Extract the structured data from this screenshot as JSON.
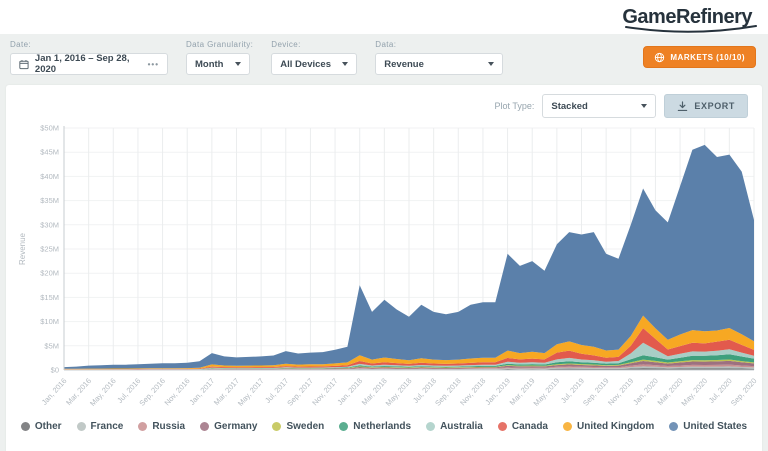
{
  "header": {
    "logo": "GameRefinery"
  },
  "filters": {
    "date": {
      "label": "Date:",
      "value": "Jan 1, 2016  –  Sep 28, 2020",
      "more": "•••"
    },
    "granularity": {
      "label": "Data Granularity:",
      "value": "Month"
    },
    "device": {
      "label": "Device:",
      "value": "All Devices"
    },
    "data": {
      "label": "Data:",
      "value": "Revenue"
    },
    "markets_button": "MARKETS (10/10)"
  },
  "toolbar": {
    "plot_type_label": "Plot Type:",
    "plot_type_value": "Stacked",
    "export_label": "EXPORT"
  },
  "chart_data": {
    "type": "area",
    "stacked": true,
    "title": "",
    "xlabel": "",
    "ylabel": "Revenue",
    "unit": "USD millions",
    "ylim": [
      0,
      50000000
    ],
    "ymax_m": 50,
    "grid": true,
    "legend_position": "bottom",
    "x_tick_every": 2,
    "yticks": [
      "$0",
      "$5M",
      "$10M",
      "$15M",
      "$20M",
      "$25M",
      "$30M",
      "$35M",
      "$40M",
      "$45M",
      "$50M"
    ],
    "categories": [
      "Jan, 2016",
      "Feb, 2016",
      "Mar, 2016",
      "Apr, 2016",
      "May, 2016",
      "Jun, 2016",
      "Jul, 2016",
      "Aug, 2016",
      "Sep, 2016",
      "Oct, 2016",
      "Nov, 2016",
      "Dec, 2016",
      "Jan, 2017",
      "Feb, 2017",
      "Mar, 2017",
      "Apr, 2017",
      "May, 2017",
      "Jun, 2017",
      "Jul, 2017",
      "Aug, 2017",
      "Sep, 2017",
      "Oct, 2017",
      "Nov, 2017",
      "Dec, 2017",
      "Jan, 2018",
      "Feb, 2018",
      "Mar, 2018",
      "Apr, 2018",
      "May, 2018",
      "Jun, 2018",
      "Jul, 2018",
      "Aug, 2018",
      "Sep, 2018",
      "Oct, 2018",
      "Nov, 2018",
      "Dec, 2018",
      "Jan, 2019",
      "Feb, 2019",
      "Mar, 2019",
      "Apr, 2019",
      "May, 2019",
      "Jun, 2019",
      "Jul, 2019",
      "Aug, 2019",
      "Sep, 2019",
      "Oct, 2019",
      "Nov, 2019",
      "Dec, 2019",
      "Jan, 2020",
      "Feb, 2020",
      "Mar, 2020",
      "Apr, 2020",
      "May, 2020",
      "Jun, 2020",
      "Jul, 2020",
      "Aug, 2020",
      "Sep, 2020"
    ],
    "series": [
      {
        "name": "Other",
        "color": "#6d6e71",
        "values": [
          0.01,
          0.01,
          0.01,
          0.01,
          0.01,
          0.01,
          0.01,
          0.01,
          0.01,
          0.01,
          0.01,
          0.01,
          0.06,
          0.05,
          0.05,
          0.05,
          0.05,
          0.05,
          0.07,
          0.06,
          0.06,
          0.06,
          0.07,
          0.08,
          0.15,
          0.11,
          0.13,
          0.11,
          0.1,
          0.12,
          0.11,
          0.1,
          0.11,
          0.12,
          0.13,
          0.13,
          0.2,
          0.17,
          0.18,
          0.17,
          0.25,
          0.28,
          0.25,
          0.23,
          0.2,
          0.21,
          0.32,
          0.4,
          0.35,
          0.28,
          0.32,
          0.36,
          0.35,
          0.36,
          0.38,
          0.32,
          0.27
        ]
      },
      {
        "name": "France",
        "color": "#b6c0bd",
        "values": [
          0.01,
          0.01,
          0.01,
          0.01,
          0.01,
          0.01,
          0.01,
          0.01,
          0.01,
          0.01,
          0.01,
          0.01,
          0.05,
          0.04,
          0.04,
          0.04,
          0.04,
          0.04,
          0.05,
          0.05,
          0.05,
          0.05,
          0.06,
          0.06,
          0.12,
          0.09,
          0.1,
          0.09,
          0.08,
          0.1,
          0.09,
          0.08,
          0.09,
          0.1,
          0.11,
          0.11,
          0.18,
          0.15,
          0.16,
          0.15,
          0.2,
          0.22,
          0.2,
          0.19,
          0.17,
          0.18,
          0.28,
          0.35,
          0.32,
          0.26,
          0.3,
          0.34,
          0.33,
          0.34,
          0.36,
          0.3,
          0.26
        ]
      },
      {
        "name": "Russia",
        "color": "#c98f90",
        "values": [
          0.01,
          0.01,
          0.01,
          0.01,
          0.01,
          0.01,
          0.01,
          0.01,
          0.01,
          0.01,
          0.01,
          0.01,
          0.05,
          0.04,
          0.04,
          0.04,
          0.04,
          0.04,
          0.06,
          0.05,
          0.05,
          0.05,
          0.06,
          0.07,
          0.13,
          0.1,
          0.11,
          0.1,
          0.09,
          0.11,
          0.1,
          0.09,
          0.1,
          0.11,
          0.12,
          0.12,
          0.18,
          0.16,
          0.17,
          0.16,
          0.22,
          0.25,
          0.22,
          0.2,
          0.18,
          0.19,
          0.3,
          0.4,
          0.35,
          0.28,
          0.32,
          0.36,
          0.35,
          0.36,
          0.38,
          0.32,
          0.28
        ]
      },
      {
        "name": "Germany",
        "color": "#9d7080",
        "values": [
          0.02,
          0.02,
          0.02,
          0.02,
          0.02,
          0.02,
          0.02,
          0.03,
          0.03,
          0.03,
          0.03,
          0.04,
          0.1,
          0.08,
          0.08,
          0.08,
          0.08,
          0.09,
          0.11,
          0.1,
          0.1,
          0.1,
          0.11,
          0.13,
          0.22,
          0.16,
          0.19,
          0.17,
          0.15,
          0.18,
          0.16,
          0.15,
          0.16,
          0.17,
          0.18,
          0.18,
          0.3,
          0.26,
          0.28,
          0.26,
          0.35,
          0.4,
          0.36,
          0.34,
          0.3,
          0.32,
          0.5,
          0.7,
          0.6,
          0.5,
          0.6,
          0.7,
          0.7,
          0.72,
          0.75,
          0.65,
          0.55
        ]
      },
      {
        "name": "Sweden",
        "color": "#c0c24e",
        "values": [
          0.01,
          0.01,
          0.01,
          0.01,
          0.01,
          0.01,
          0.01,
          0.01,
          0.01,
          0.01,
          0.01,
          0.01,
          0.05,
          0.04,
          0.04,
          0.04,
          0.04,
          0.05,
          0.06,
          0.05,
          0.05,
          0.05,
          0.06,
          0.07,
          0.12,
          0.09,
          0.11,
          0.1,
          0.09,
          0.1,
          0.09,
          0.09,
          0.09,
          0.1,
          0.11,
          0.11,
          0.15,
          0.13,
          0.14,
          0.13,
          0.18,
          0.2,
          0.18,
          0.17,
          0.15,
          0.16,
          0.22,
          0.3,
          0.26,
          0.22,
          0.25,
          0.28,
          0.27,
          0.28,
          0.3,
          0.25,
          0.2
        ]
      },
      {
        "name": "Netherlands",
        "color": "#3ea07d",
        "values": [
          0.02,
          0.02,
          0.02,
          0.02,
          0.02,
          0.02,
          0.03,
          0.03,
          0.03,
          0.03,
          0.03,
          0.04,
          0.08,
          0.07,
          0.06,
          0.07,
          0.07,
          0.07,
          0.09,
          0.08,
          0.08,
          0.09,
          0.1,
          0.11,
          0.22,
          0.16,
          0.19,
          0.17,
          0.15,
          0.18,
          0.16,
          0.15,
          0.16,
          0.18,
          0.19,
          0.19,
          0.3,
          0.27,
          0.29,
          0.27,
          0.4,
          0.45,
          0.4,
          0.38,
          0.32,
          0.35,
          0.6,
          0.9,
          0.75,
          0.6,
          0.75,
          0.9,
          0.95,
          1.0,
          1.1,
          0.95,
          0.8
        ]
      },
      {
        "name": "Australia",
        "color": "#a8cec6",
        "values": [
          0.03,
          0.03,
          0.03,
          0.03,
          0.04,
          0.04,
          0.04,
          0.04,
          0.04,
          0.04,
          0.05,
          0.06,
          0.1,
          0.09,
          0.08,
          0.08,
          0.09,
          0.09,
          0.12,
          0.1,
          0.11,
          0.11,
          0.12,
          0.15,
          0.3,
          0.22,
          0.26,
          0.23,
          0.2,
          0.24,
          0.21,
          0.2,
          0.21,
          0.23,
          0.25,
          0.25,
          0.4,
          0.35,
          0.38,
          0.35,
          0.6,
          0.7,
          0.55,
          0.5,
          0.4,
          0.45,
          1.2,
          2.6,
          1.6,
          0.7,
          0.8,
          0.9,
          0.85,
          0.9,
          1.0,
          0.8,
          0.6
        ]
      },
      {
        "name": "Canada",
        "color": "#e25a4d",
        "values": [
          0.05,
          0.05,
          0.06,
          0.06,
          0.07,
          0.07,
          0.07,
          0.08,
          0.08,
          0.08,
          0.08,
          0.1,
          0.22,
          0.18,
          0.17,
          0.17,
          0.18,
          0.19,
          0.25,
          0.21,
          0.22,
          0.23,
          0.26,
          0.3,
          0.6,
          0.42,
          0.5,
          0.45,
          0.4,
          0.48,
          0.42,
          0.4,
          0.42,
          0.46,
          0.5,
          0.5,
          0.8,
          0.7,
          0.75,
          0.7,
          1.4,
          1.5,
          1.2,
          1.0,
          0.8,
          0.85,
          1.6,
          3.0,
          2.2,
          1.4,
          1.6,
          1.8,
          1.7,
          1.9,
          2.0,
          1.6,
          1.2
        ]
      },
      {
        "name": "United Kingdom",
        "color": "#f7a823",
        "values": [
          0.1,
          0.1,
          0.12,
          0.12,
          0.13,
          0.13,
          0.14,
          0.15,
          0.15,
          0.15,
          0.16,
          0.2,
          0.45,
          0.35,
          0.32,
          0.33,
          0.35,
          0.38,
          0.5,
          0.42,
          0.45,
          0.45,
          0.52,
          0.6,
          1.2,
          0.8,
          1.0,
          0.85,
          0.75,
          0.9,
          0.8,
          0.78,
          0.8,
          0.9,
          0.95,
          0.95,
          1.5,
          1.3,
          1.4,
          1.3,
          1.7,
          1.9,
          1.8,
          1.8,
          1.5,
          1.5,
          2.0,
          2.6,
          2.2,
          2.0,
          2.4,
          2.6,
          2.5,
          2.3,
          2.4,
          2.2,
          1.8
        ]
      },
      {
        "name": "United States",
        "color": "#5b80aa",
        "values": [
          0.34,
          0.44,
          0.61,
          0.71,
          0.78,
          0.78,
          0.86,
          0.93,
          1.03,
          1.03,
          1.11,
          1.33,
          2.34,
          1.86,
          1.72,
          1.8,
          1.86,
          2.0,
          2.59,
          2.28,
          2.43,
          2.51,
          2.84,
          3.23,
          14.44,
          9.85,
          11.91,
          10.23,
          8.99,
          11.09,
          9.86,
          9.46,
          9.86,
          11.13,
          11.46,
          11.46,
          19.99,
          18.01,
          18.75,
          17.01,
          20.7,
          22.6,
          22.84,
          23.69,
          19.98,
          18.79,
          22.98,
          26.25,
          24.37,
          24.26,
          30.66,
          37.26,
          38.5,
          35.84,
          35.83,
          33.61,
          25.04
        ]
      }
    ]
  }
}
